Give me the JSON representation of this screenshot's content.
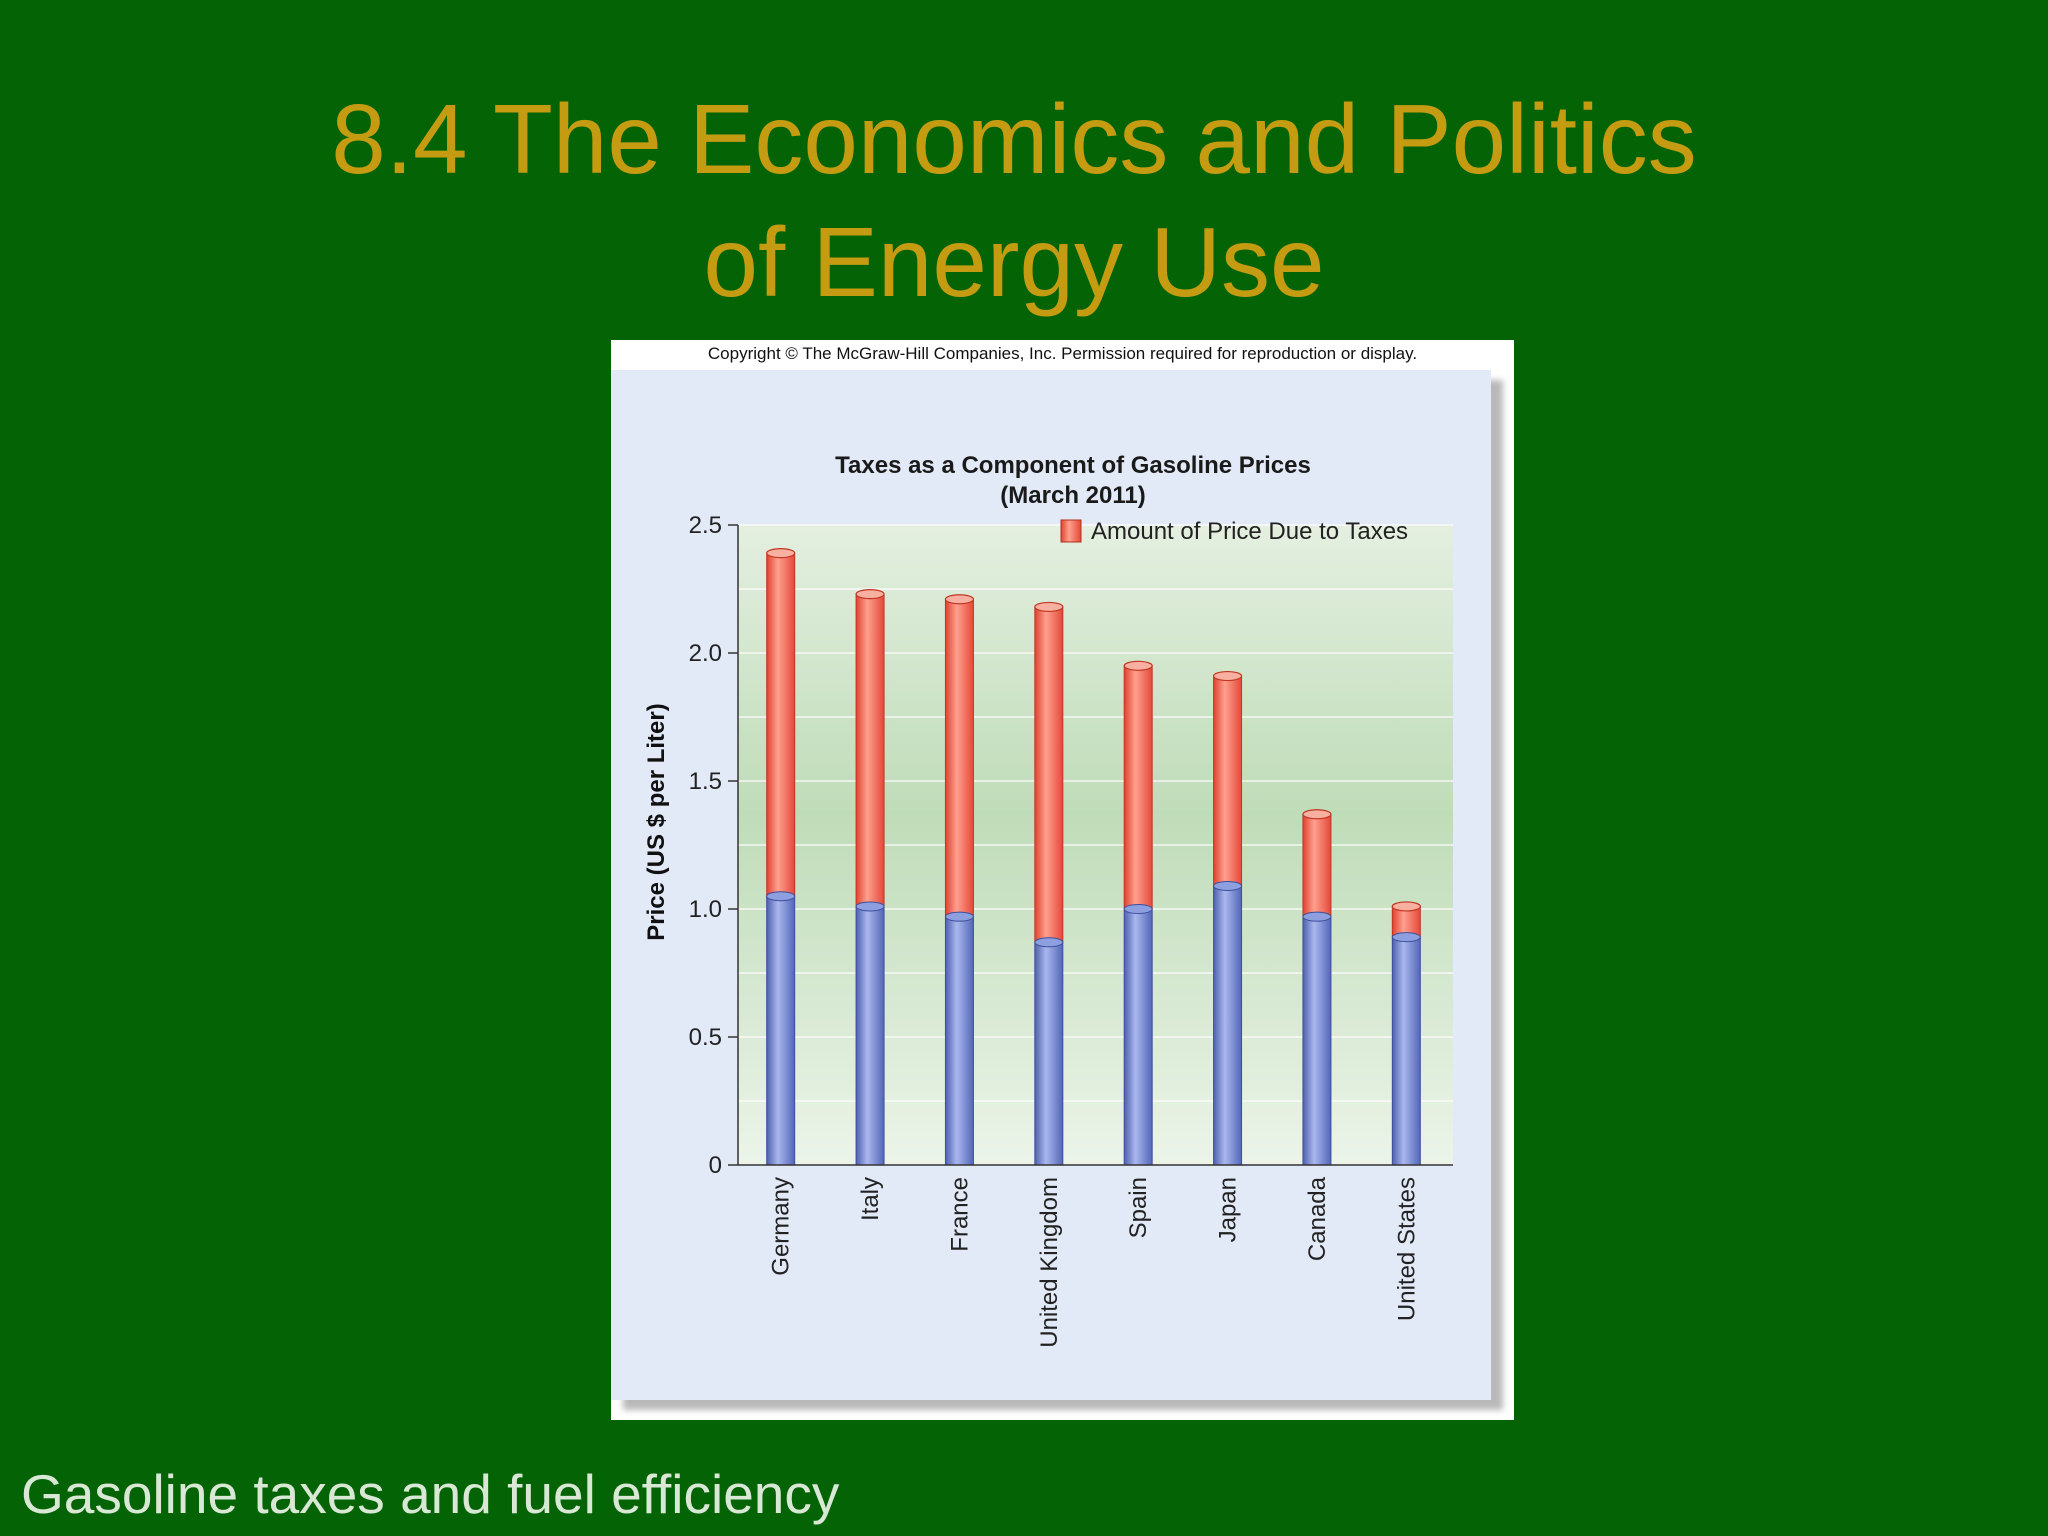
{
  "slide": {
    "title": "8.4 The Economics and Politics\nof Energy Use",
    "footer": "Gasoline taxes and fuel efficiency"
  },
  "figure": {
    "copyright": "Copyright © The McGraw-Hill Companies, Inc. Permission required for reproduction or display."
  },
  "colors": {
    "background": "#046304",
    "title": "#c59b12",
    "footer": "#d8e8d4",
    "base_bar": "#7b8fd6",
    "tax_bar": "#f26a55",
    "plot_bg_top": "#cfe3c8",
    "plot_bg_bottom": "#edf5ea"
  },
  "chart_data": {
    "type": "bar",
    "stacked": true,
    "title": "Taxes as a Component of Gasoline Prices",
    "subtitle": "(March 2011)",
    "ylabel": "Price (US $ per Liter)",
    "xlabel": "",
    "ylim": [
      0,
      2.5
    ],
    "yticks": [
      0,
      0.5,
      1.0,
      1.5,
      2.0,
      2.5
    ],
    "ytick_labels": [
      "0",
      "0.5",
      "1.0",
      "1.5",
      "2.0",
      "2.5"
    ],
    "grid": true,
    "legend_position": "top-right",
    "categories": [
      "Germany",
      "Italy",
      "France",
      "United Kingdom",
      "Spain",
      "Japan",
      "Canada",
      "United States"
    ],
    "series": [
      {
        "name": "",
        "values": [
          1.05,
          1.01,
          0.97,
          0.87,
          1.0,
          1.09,
          0.97,
          0.89
        ]
      },
      {
        "name": "Amount of Price Due to Taxes",
        "values": [
          1.34,
          1.22,
          1.24,
          1.31,
          0.95,
          0.82,
          0.4,
          0.12
        ]
      }
    ],
    "totals": [
      2.39,
      2.23,
      2.21,
      2.18,
      1.95,
      1.91,
      1.37,
      1.01
    ]
  }
}
